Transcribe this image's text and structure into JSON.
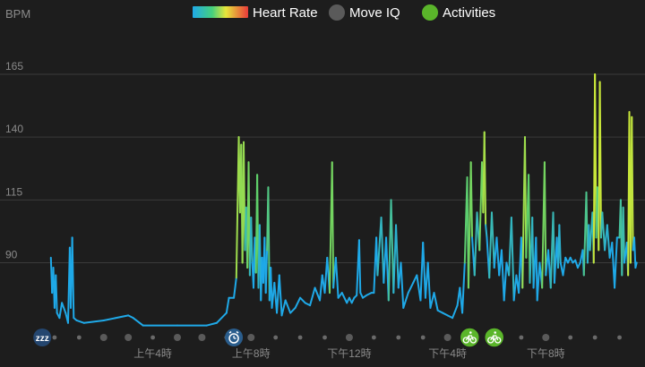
{
  "legend": {
    "heart_rate": "Heart Rate",
    "move_iq": "Move IQ",
    "activities": "Activities"
  },
  "colors": {
    "background": "#1d1d1d",
    "grid": "#3a3a3a",
    "axis_text": "#8a8a8a",
    "hr_low": "#1fa9e8",
    "hr_mid": "#5fd06a",
    "hr_high": "#c8e63a",
    "move_iq": "#5a5a5a",
    "activities": "#5ab52a",
    "sleep_marker": "#24466f",
    "alarm_marker": "#2a5d8c",
    "dot": "#6a6a6a"
  },
  "chart_data": {
    "type": "line",
    "title": "",
    "ylabel": "BPM",
    "xlabel": "",
    "ylim": [
      62,
      175
    ],
    "yticks": [
      90,
      115,
      140,
      165
    ],
    "xlim": [
      -1.2,
      23.6
    ],
    "xticks": [
      {
        "hour": 4,
        "label": "上午4時"
      },
      {
        "hour": 8,
        "label": "上午8時"
      },
      {
        "hour": 12,
        "label": "下午12時"
      },
      {
        "hour": 16,
        "label": "下午4時"
      },
      {
        "hour": 20,
        "label": "下午8時"
      }
    ],
    "grid": true,
    "legend_position": "top",
    "series": [
      {
        "name": "Heart Rate",
        "points": [
          [
            -0.15,
            92
          ],
          [
            -0.1,
            78
          ],
          [
            -0.05,
            88
          ],
          [
            0.0,
            72
          ],
          [
            0.05,
            85
          ],
          [
            0.1,
            70
          ],
          [
            0.2,
            68
          ],
          [
            0.3,
            74
          ],
          [
            0.45,
            70
          ],
          [
            0.55,
            66
          ],
          [
            0.62,
            96
          ],
          [
            0.66,
            72
          ],
          [
            0.72,
            100
          ],
          [
            0.78,
            68
          ],
          [
            0.9,
            67
          ],
          [
            1.2,
            66
          ],
          [
            2.0,
            67
          ],
          [
            3.0,
            69
          ],
          [
            3.2,
            68
          ],
          [
            3.6,
            65
          ],
          [
            5.0,
            65
          ],
          [
            6.2,
            65
          ],
          [
            6.6,
            66
          ],
          [
            7.0,
            70
          ],
          [
            7.1,
            76
          ],
          [
            7.3,
            76
          ],
          [
            7.4,
            84
          ],
          [
            7.5,
            140
          ],
          [
            7.55,
            110
          ],
          [
            7.6,
            137
          ],
          [
            7.65,
            90
          ],
          [
            7.7,
            138
          ],
          [
            7.75,
            95
          ],
          [
            7.8,
            112
          ],
          [
            7.85,
            88
          ],
          [
            7.9,
            130
          ],
          [
            7.95,
            85
          ],
          [
            8.0,
            108
          ],
          [
            8.05,
            90
          ],
          [
            8.1,
            80
          ],
          [
            8.15,
            100
          ],
          [
            8.2,
            86
          ],
          [
            8.25,
            125
          ],
          [
            8.3,
            80
          ],
          [
            8.35,
            105
          ],
          [
            8.4,
            75
          ],
          [
            8.45,
            92
          ],
          [
            8.5,
            82
          ],
          [
            8.55,
            100
          ],
          [
            8.6,
            78
          ],
          [
            8.65,
            95
          ],
          [
            8.7,
            120
          ],
          [
            8.75,
            75
          ],
          [
            8.8,
            88
          ],
          [
            8.85,
            72
          ],
          [
            8.95,
            82
          ],
          [
            9.05,
            70
          ],
          [
            9.15,
            85
          ],
          [
            9.25,
            69
          ],
          [
            9.4,
            75
          ],
          [
            9.6,
            70
          ],
          [
            9.8,
            72
          ],
          [
            10.0,
            76
          ],
          [
            10.2,
            74
          ],
          [
            10.4,
            73
          ],
          [
            10.6,
            80
          ],
          [
            10.8,
            75
          ],
          [
            10.9,
            85
          ],
          [
            11.0,
            78
          ],
          [
            11.1,
            92
          ],
          [
            11.2,
            78
          ],
          [
            11.3,
            130
          ],
          [
            11.35,
            80
          ],
          [
            11.45,
            92
          ],
          [
            11.55,
            76
          ],
          [
            11.7,
            78
          ],
          [
            11.9,
            74
          ],
          [
            12.0,
            76
          ],
          [
            12.1,
            74
          ],
          [
            12.2,
            76
          ],
          [
            12.3,
            77
          ],
          [
            12.4,
            99
          ],
          [
            12.45,
            78
          ],
          [
            12.55,
            76
          ],
          [
            12.7,
            77
          ],
          [
            12.9,
            78
          ],
          [
            13.0,
            78
          ],
          [
            13.1,
            100
          ],
          [
            13.15,
            85
          ],
          [
            13.3,
            108
          ],
          [
            13.4,
            82
          ],
          [
            13.5,
            100
          ],
          [
            13.6,
            75
          ],
          [
            13.7,
            115
          ],
          [
            13.8,
            78
          ],
          [
            13.9,
            105
          ],
          [
            14.0,
            80
          ],
          [
            14.1,
            90
          ],
          [
            14.2,
            72
          ],
          [
            14.4,
            78
          ],
          [
            14.6,
            82
          ],
          [
            14.75,
            85
          ],
          [
            14.9,
            75
          ],
          [
            15.0,
            98
          ],
          [
            15.1,
            76
          ],
          [
            15.2,
            90
          ],
          [
            15.3,
            72
          ],
          [
            15.45,
            78
          ],
          [
            15.6,
            71
          ],
          [
            15.8,
            70
          ],
          [
            16.0,
            69
          ],
          [
            16.2,
            68
          ],
          [
            16.4,
            73
          ],
          [
            16.5,
            80
          ],
          [
            16.6,
            70
          ],
          [
            16.7,
            90
          ],
          [
            16.8,
            124
          ],
          [
            16.85,
            80
          ],
          [
            16.95,
            130
          ],
          [
            17.0,
            100
          ],
          [
            17.1,
            85
          ],
          [
            17.2,
            110
          ],
          [
            17.3,
            95
          ],
          [
            17.4,
            130
          ],
          [
            17.45,
            110
          ],
          [
            17.5,
            142
          ],
          [
            17.55,
            105
          ],
          [
            17.6,
            100
          ],
          [
            17.7,
            84
          ],
          [
            17.8,
            110
          ],
          [
            17.9,
            88
          ],
          [
            18.0,
            100
          ],
          [
            18.1,
            85
          ],
          [
            18.2,
            95
          ],
          [
            18.3,
            75
          ],
          [
            18.4,
            90
          ],
          [
            18.5,
            85
          ],
          [
            18.6,
            108
          ],
          [
            18.7,
            75
          ],
          [
            18.8,
            85
          ],
          [
            18.9,
            78
          ],
          [
            19.0,
            100
          ],
          [
            19.05,
            80
          ],
          [
            19.15,
            140
          ],
          [
            19.2,
            92
          ],
          [
            19.3,
            125
          ],
          [
            19.35,
            82
          ],
          [
            19.45,
            108
          ],
          [
            19.5,
            80
          ],
          [
            19.6,
            100
          ],
          [
            19.65,
            75
          ],
          [
            19.75,
            90
          ],
          [
            19.85,
            80
          ],
          [
            19.95,
            130
          ],
          [
            20.0,
            85
          ],
          [
            20.1,
            95
          ],
          [
            20.2,
            80
          ],
          [
            20.3,
            110
          ],
          [
            20.35,
            82
          ],
          [
            20.45,
            100
          ],
          [
            20.5,
            88
          ],
          [
            20.55,
            105
          ],
          [
            20.6,
            90
          ],
          [
            20.7,
            85
          ],
          [
            20.8,
            92
          ],
          [
            20.9,
            90
          ],
          [
            21.0,
            92
          ],
          [
            21.1,
            90
          ],
          [
            21.2,
            91
          ],
          [
            21.3,
            88
          ],
          [
            21.4,
            90
          ],
          [
            21.5,
            95
          ],
          [
            21.55,
            85
          ],
          [
            21.65,
            118
          ],
          [
            21.7,
            90
          ],
          [
            21.75,
            105
          ],
          [
            21.8,
            95
          ],
          [
            21.9,
            110
          ],
          [
            21.95,
            90
          ],
          [
            22.0,
            165
          ],
          [
            22.05,
            100
          ],
          [
            22.1,
            120
          ],
          [
            22.15,
            95
          ],
          [
            22.2,
            162
          ],
          [
            22.25,
            100
          ],
          [
            22.3,
            110
          ],
          [
            22.4,
            95
          ],
          [
            22.5,
            105
          ],
          [
            22.6,
            92
          ],
          [
            22.7,
            98
          ],
          [
            22.8,
            80
          ],
          [
            22.9,
            100
          ],
          [
            23.0,
            100
          ],
          [
            23.05,
            115
          ],
          [
            23.1,
            85
          ],
          [
            23.15,
            112
          ],
          [
            23.2,
            90
          ],
          [
            23.3,
            98
          ],
          [
            23.35,
            85
          ],
          [
            23.4,
            150
          ],
          [
            23.45,
            90
          ],
          [
            23.5,
            148
          ],
          [
            23.55,
            95
          ],
          [
            23.6,
            100
          ],
          [
            23.65,
            88
          ],
          [
            23.7,
            90
          ]
        ]
      }
    ],
    "markers": [
      {
        "type": "sleep",
        "hour": -0.5,
        "text": "zzz"
      },
      {
        "type": "alarm",
        "hour": 7.3
      },
      {
        "type": "activity",
        "hour": 16.9
      },
      {
        "type": "activity",
        "hour": 17.9
      }
    ],
    "move_iq_hours": [
      2.0,
      3.0,
      5.0,
      6.0,
      8.0,
      12.0,
      16.0,
      20.0
    ]
  }
}
